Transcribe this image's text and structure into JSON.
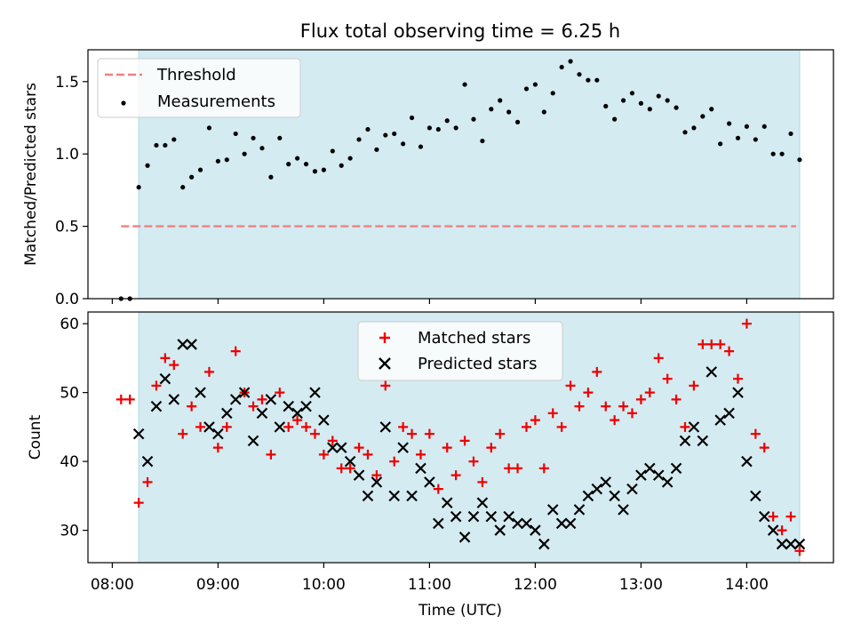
{
  "title": "Flux total observing time = 6.25 h",
  "xlabel": "Time (UTC)",
  "x_ticks": [
    "08:00",
    "09:00",
    "10:00",
    "11:00",
    "12:00",
    "13:00",
    "14:00"
  ],
  "colors": {
    "shade": "#d4ebf1",
    "threshold": "#f08080",
    "matched": "#ee0000",
    "predicted": "#000000",
    "measurement": "#000000"
  },
  "chart_data": [
    {
      "type": "scatter",
      "panel": "top",
      "ylabel": "Matched/Predicted stars",
      "ylim": [
        0,
        1.72
      ],
      "xlim": [
        7.77,
        14.82
      ],
      "y_ticks": [
        "0.0",
        "0.5",
        "1.0",
        "1.5"
      ],
      "shaded_span": [
        8.25,
        14.5
      ],
      "grid": false,
      "legend_position": "upper-left",
      "legend": [
        "Threshold",
        "Measurements"
      ],
      "threshold": {
        "name": "Threshold",
        "y": 0.5,
        "x_range": [
          "08:05",
          "14:28"
        ],
        "style": "dashed"
      },
      "series": [
        {
          "name": "Measurements",
          "x": [
            "08:05",
            "08:10",
            "08:15",
            "08:20",
            "08:25",
            "08:30",
            "08:35",
            "08:40",
            "08:45",
            "08:50",
            "08:55",
            "09:00",
            "09:05",
            "09:10",
            "09:15",
            "09:20",
            "09:25",
            "09:30",
            "09:35",
            "09:40",
            "09:45",
            "09:50",
            "09:55",
            "10:00",
            "10:05",
            "10:10",
            "10:15",
            "10:20",
            "10:25",
            "10:30",
            "10:35",
            "10:40",
            "10:45",
            "10:50",
            "10:55",
            "11:00",
            "11:05",
            "11:10",
            "11:15",
            "11:20",
            "11:25",
            "11:30",
            "11:35",
            "11:40",
            "11:45",
            "11:50",
            "11:55",
            "12:00",
            "12:05",
            "12:10",
            "12:15",
            "12:20",
            "12:25",
            "12:30",
            "12:35",
            "12:40",
            "12:45",
            "12:50",
            "12:55",
            "13:00",
            "13:05",
            "13:10",
            "13:15",
            "13:20",
            "13:25",
            "13:30",
            "13:35",
            "13:40",
            "13:45",
            "13:50",
            "13:55",
            "14:00",
            "14:05",
            "14:10",
            "14:15",
            "14:20",
            "14:25",
            "14:30"
          ],
          "values": [
            0.0,
            0.0,
            0.77,
            0.92,
            1.06,
            1.06,
            1.1,
            0.77,
            0.84,
            0.89,
            1.18,
            0.95,
            0.96,
            1.14,
            1.0,
            1.11,
            1.04,
            0.84,
            1.11,
            0.93,
            0.97,
            0.93,
            0.88,
            0.89,
            1.02,
            0.92,
            0.97,
            1.1,
            1.17,
            1.03,
            1.13,
            1.14,
            1.07,
            1.25,
            1.05,
            1.18,
            1.17,
            1.23,
            1.18,
            1.48,
            1.24,
            1.09,
            1.31,
            1.37,
            1.29,
            1.22,
            1.45,
            1.48,
            1.29,
            1.42,
            1.6,
            1.64,
            1.55,
            1.51,
            1.51,
            1.33,
            1.24,
            1.37,
            1.42,
            1.35,
            1.31,
            1.4,
            1.37,
            1.32,
            1.15,
            1.18,
            1.26,
            1.31,
            1.07,
            1.21,
            1.11,
            1.19,
            1.1,
            1.19,
            1.0,
            1.0,
            1.14,
            0.96
          ]
        }
      ]
    },
    {
      "type": "scatter",
      "panel": "bottom",
      "ylabel": "Count",
      "ylim": [
        25.3,
        61.7
      ],
      "xlim": [
        7.77,
        14.82
      ],
      "y_ticks": [
        "30",
        "40",
        "50",
        "60"
      ],
      "shaded_span": [
        8.25,
        14.5
      ],
      "grid": false,
      "legend_position": "upper-center",
      "legend": [
        "Matched stars",
        "Predicted stars"
      ],
      "x": [
        "08:05",
        "08:10",
        "08:15",
        "08:20",
        "08:25",
        "08:30",
        "08:35",
        "08:40",
        "08:45",
        "08:50",
        "08:55",
        "09:00",
        "09:05",
        "09:10",
        "09:15",
        "09:20",
        "09:25",
        "09:30",
        "09:35",
        "09:40",
        "09:45",
        "09:50",
        "09:55",
        "10:00",
        "10:05",
        "10:10",
        "10:15",
        "10:20",
        "10:25",
        "10:30",
        "10:35",
        "10:40",
        "10:45",
        "10:50",
        "10:55",
        "11:00",
        "11:05",
        "11:10",
        "11:15",
        "11:20",
        "11:25",
        "11:30",
        "11:35",
        "11:40",
        "11:45",
        "11:50",
        "11:55",
        "12:00",
        "12:05",
        "12:10",
        "12:15",
        "12:20",
        "12:25",
        "12:30",
        "12:35",
        "12:40",
        "12:45",
        "12:50",
        "12:55",
        "13:00",
        "13:05",
        "13:10",
        "13:15",
        "13:20",
        "13:25",
        "13:30",
        "13:35",
        "13:40",
        "13:45",
        "13:50",
        "13:55",
        "14:00",
        "14:05",
        "14:10",
        "14:15",
        "14:20",
        "14:25",
        "14:30"
      ],
      "series": [
        {
          "name": "Matched stars",
          "marker": "plus",
          "values": [
            49,
            49,
            34,
            37,
            51,
            55,
            54,
            44,
            48,
            45,
            53,
            42,
            45,
            56,
            50,
            48,
            49,
            41,
            50,
            45,
            46,
            45,
            44,
            41,
            43,
            39,
            39,
            42,
            41,
            38,
            51,
            40,
            45,
            44,
            41,
            44,
            36,
            42,
            38,
            43,
            40,
            37,
            42,
            44,
            39,
            39,
            45,
            46,
            39,
            47,
            45,
            51,
            48,
            50,
            53,
            48,
            46,
            48,
            47,
            49,
            50,
            55,
            52,
            49,
            45,
            51,
            57,
            57,
            57,
            56,
            52,
            60,
            44,
            42,
            32,
            30,
            32,
            27
          ]
        },
        {
          "name": "Predicted stars",
          "marker": "x",
          "values": [
            null,
            null,
            44,
            40,
            48,
            52,
            49,
            57,
            57,
            50,
            45,
            44,
            47,
            49,
            50,
            43,
            47,
            49,
            45,
            48,
            47,
            48,
            50,
            46,
            42,
            42,
            40,
            38,
            35,
            37,
            45,
            35,
            42,
            35,
            39,
            37,
            31,
            34,
            32,
            29,
            32,
            34,
            32,
            30,
            32,
            31,
            31,
            30,
            28,
            33,
            31,
            31,
            33,
            35,
            36,
            37,
            35,
            33,
            36,
            38,
            39,
            38,
            37,
            39,
            43,
            45,
            43,
            53,
            46,
            47,
            50,
            40,
            35,
            32,
            30,
            28,
            28,
            28
          ]
        }
      ]
    }
  ]
}
